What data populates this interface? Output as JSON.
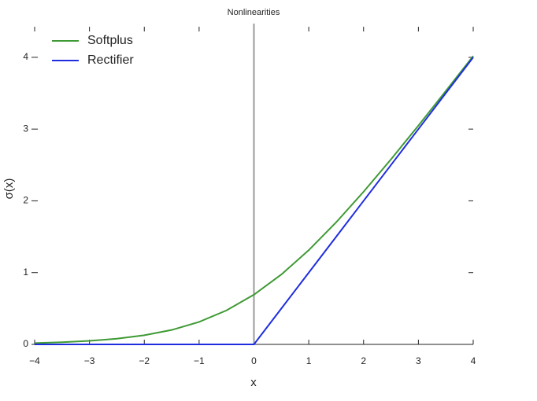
{
  "chart_data": {
    "type": "line",
    "title": "Nonlinearities",
    "x_label": "x",
    "y_label": "σ(x)",
    "x": [
      -4,
      -3.5,
      -3,
      -2.5,
      -2,
      -1.5,
      -1,
      -0.5,
      0,
      0.5,
      1,
      1.5,
      2,
      2.5,
      3,
      3.5,
      4
    ],
    "series": [
      {
        "name": "Softplus",
        "color": "#3e9a34",
        "values": [
          0.018,
          0.03,
          0.049,
          0.079,
          0.127,
          0.201,
          0.313,
          0.474,
          0.693,
          0.974,
          1.313,
          1.701,
          2.127,
          2.579,
          3.049,
          3.53,
          4.018
        ]
      },
      {
        "name": "Rectifier",
        "color": "#1f2de0",
        "values": [
          0,
          0,
          0,
          0,
          0,
          0,
          0,
          0,
          0,
          0.5,
          1,
          1.5,
          2,
          2.5,
          3,
          3.5,
          4
        ]
      }
    ],
    "xlim": [
      -4,
      4
    ],
    "ylim": [
      0,
      4.47
    ],
    "xticks": [
      {
        "value": -4,
        "label": "−4"
      },
      {
        "value": -3,
        "label": "−3"
      },
      {
        "value": -2,
        "label": "−2"
      },
      {
        "value": -1,
        "label": "−1"
      },
      0,
      1,
      2,
      3,
      4
    ],
    "yticks": [
      0,
      1,
      2,
      3,
      4
    ],
    "vlines": [
      0
    ],
    "legend": "upper-left"
  }
}
